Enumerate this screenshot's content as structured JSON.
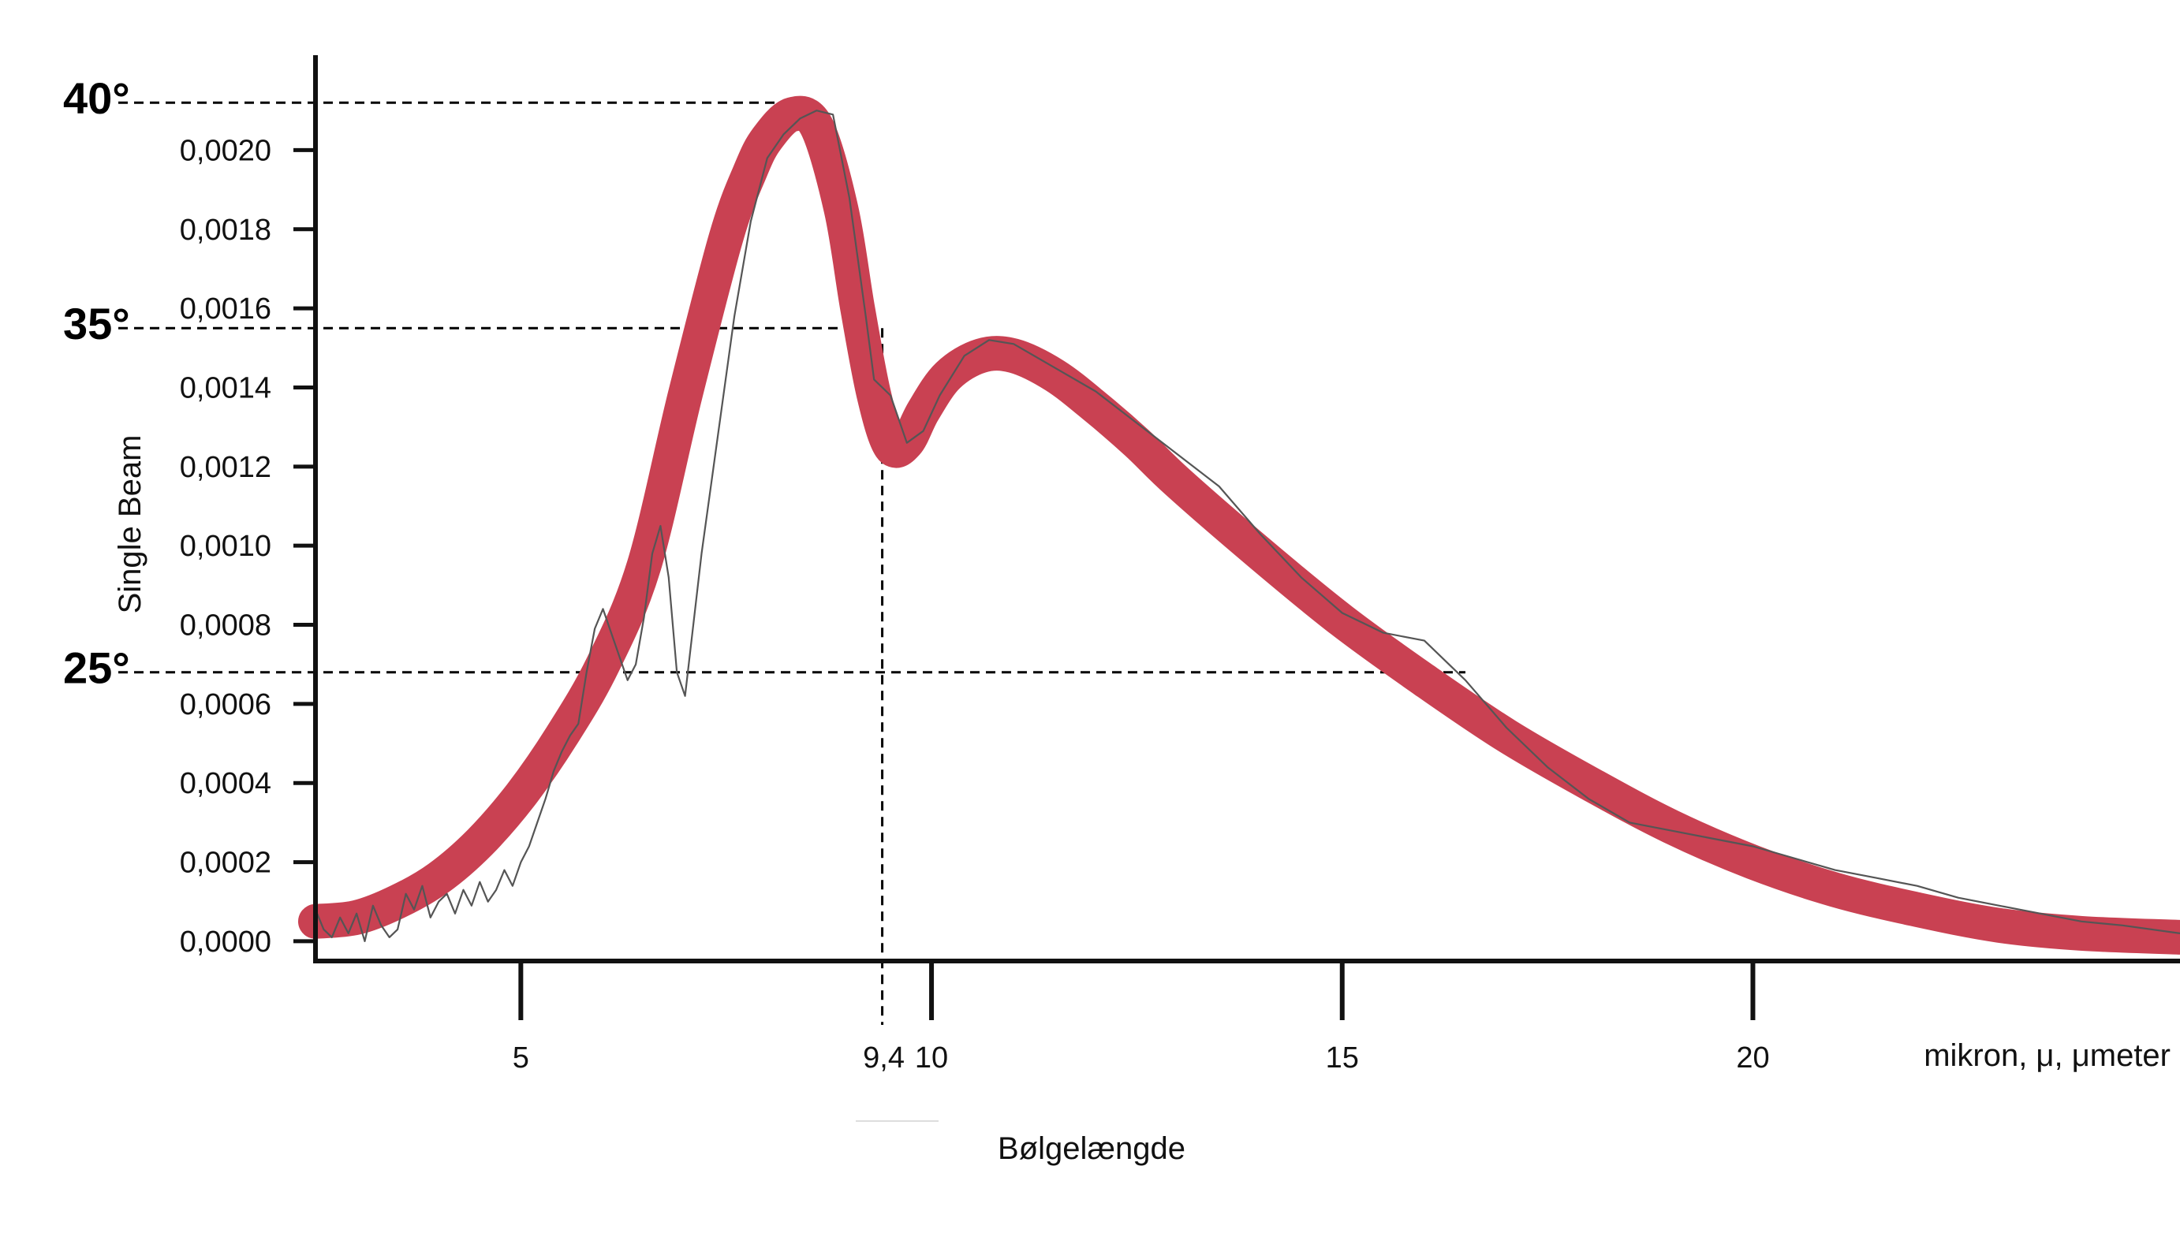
{
  "chart_data": {
    "type": "line",
    "title": "",
    "xlabel": "Bølgelængde",
    "x_unit_label": "mikron, μ, μmeter",
    "ylabel": "Single Beam",
    "xlim": [
      2.5,
      25.2
    ],
    "ylim": [
      -5e-05,
      0.00224
    ],
    "x_ticks": [
      5,
      10,
      15,
      20
    ],
    "x_tick_labels": [
      "5",
      "10",
      "15",
      "20"
    ],
    "extra_x_label": "9,4",
    "y_ticks": [
      0.0,
      0.0002,
      0.0004,
      0.0006,
      0.0008,
      0.001,
      0.0012,
      0.0014,
      0.0016,
      0.0018,
      0.002
    ],
    "y_tick_labels": [
      "0,0000",
      "0,0002",
      "0,0004",
      "0,0006",
      "0,0008",
      "0,0010",
      "0,0012",
      "0,0014",
      "0,0016",
      "0,0018",
      "0,0020"
    ],
    "reference_lines": [
      {
        "label": "40°",
        "y": 0.00212,
        "x_end": 8.2
      },
      {
        "label": "35°",
        "y": 0.00155,
        "x_end": 9.35,
        "vertical_x": 9.4
      },
      {
        "label": "25°",
        "y": 0.00068,
        "x_end": 16.5
      }
    ],
    "series": [
      {
        "style": "smooth-thick-band",
        "color": "#c94152",
        "x": [
          2.5,
          3.0,
          3.5,
          4.0,
          4.5,
          5.0,
          5.5,
          6.0,
          6.5,
          7.0,
          7.5,
          7.8,
          8.0,
          8.3,
          8.6,
          8.9,
          9.1,
          9.3,
          9.5,
          9.7,
          9.9,
          10.2,
          10.6,
          11.0,
          11.5,
          12.0,
          12.5,
          13.0,
          14.0,
          15.0,
          16.0,
          17.0,
          18.0,
          19.0,
          20.0,
          21.0,
          22.0,
          23.0,
          24.0,
          25.2
        ],
        "y": [
          5e-05,
          6e-05,
          0.0001,
          0.00016,
          0.00025,
          0.00037,
          0.00052,
          0.0007,
          0.00095,
          0.00138,
          0.00178,
          0.00195,
          0.00203,
          0.00209,
          0.00206,
          0.00185,
          0.0016,
          0.00138,
          0.00125,
          0.00126,
          0.00134,
          0.00143,
          0.00148,
          0.00148,
          0.00143,
          0.00135,
          0.00126,
          0.00116,
          0.00098,
          0.00081,
          0.00066,
          0.00052,
          0.0004,
          0.00029,
          0.0002,
          0.00013,
          8e-05,
          4e-05,
          2e-05,
          1e-05
        ]
      },
      {
        "style": "thin-noisy-trace",
        "color": "#555555",
        "x": [
          2.5,
          2.6,
          2.7,
          2.8,
          2.9,
          3.0,
          3.1,
          3.2,
          3.3,
          3.4,
          3.5,
          3.6,
          3.7,
          3.8,
          3.9,
          4.0,
          4.1,
          4.2,
          4.3,
          4.4,
          4.5,
          4.6,
          4.7,
          4.8,
          4.9,
          5.0,
          5.1,
          5.2,
          5.3,
          5.4,
          5.5,
          5.6,
          5.7,
          5.8,
          5.9,
          6.0,
          6.1,
          6.2,
          6.3,
          6.4,
          6.5,
          6.6,
          6.7,
          6.8,
          6.9,
          7.0,
          7.2,
          7.4,
          7.6,
          7.8,
          8.0,
          8.2,
          8.4,
          8.6,
          8.8,
          9.0,
          9.2,
          9.3,
          9.5,
          9.7,
          9.9,
          10.1,
          10.4,
          10.7,
          11.0,
          11.5,
          12.0,
          12.5,
          13.0,
          13.5,
          14.0,
          14.5,
          15.0,
          15.5,
          16.0,
          16.5,
          17.0,
          17.5,
          18.0,
          18.5,
          19.0,
          19.5,
          20.0,
          20.5,
          21.0,
          21.5,
          22.0,
          22.5,
          23.0,
          23.5,
          24.0,
          24.5,
          25.2
        ],
        "y": [
          8e-05,
          3e-05,
          1e-05,
          6e-05,
          2e-05,
          7e-05,
          0.0,
          9e-05,
          4e-05,
          1e-05,
          3e-05,
          0.00012,
          8e-05,
          0.00014,
          6e-05,
          0.0001,
          0.00012,
          7e-05,
          0.00013,
          9e-05,
          0.00015,
          0.0001,
          0.00013,
          0.00018,
          0.00014,
          0.0002,
          0.00024,
          0.0003,
          0.00036,
          0.00043,
          0.00048,
          0.00052,
          0.00055,
          0.00068,
          0.00079,
          0.00084,
          0.00078,
          0.00072,
          0.00066,
          0.0007,
          0.00082,
          0.00098,
          0.00105,
          0.00092,
          0.00068,
          0.00062,
          0.00098,
          0.00128,
          0.00158,
          0.00182,
          0.00198,
          0.00204,
          0.00208,
          0.0021,
          0.00209,
          0.00188,
          0.00158,
          0.00142,
          0.00138,
          0.00126,
          0.00129,
          0.00138,
          0.00148,
          0.00152,
          0.00151,
          0.00145,
          0.00139,
          0.00131,
          0.00123,
          0.00115,
          0.00103,
          0.00092,
          0.00083,
          0.00078,
          0.00076,
          0.00066,
          0.00054,
          0.00044,
          0.00036,
          0.0003,
          0.00028,
          0.00026,
          0.00024,
          0.00021,
          0.00018,
          0.00016,
          0.00014,
          0.00011,
          9e-05,
          7e-05,
          5e-05,
          4e-05,
          2e-05
        ]
      }
    ],
    "grid": false,
    "legend": "none"
  }
}
